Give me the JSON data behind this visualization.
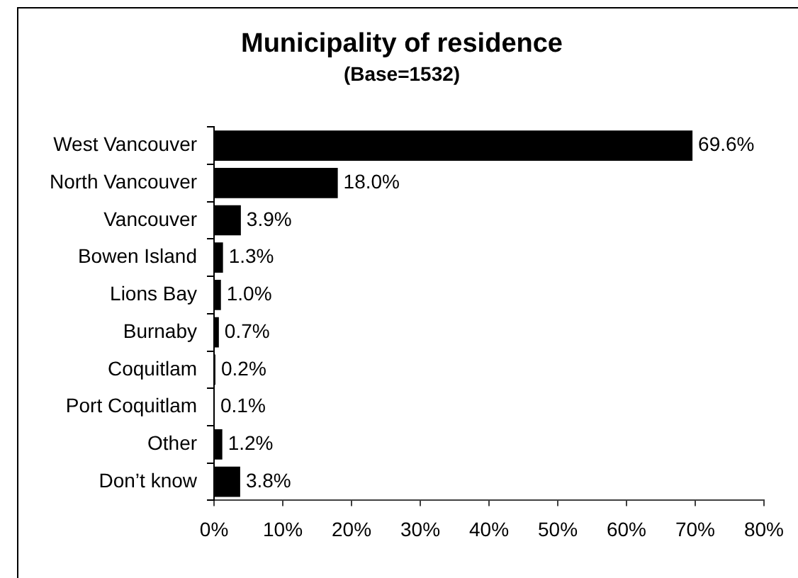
{
  "chart_data": {
    "type": "bar",
    "orientation": "horizontal",
    "title": "Municipality of residence",
    "subtitle": "(Base=1532)",
    "categories": [
      "West Vancouver",
      "North Vancouver",
      "Vancouver",
      "Bowen Island",
      "Lions Bay",
      "Burnaby",
      "Coquitlam",
      "Port Coquitlam",
      "Other",
      "Don’t know"
    ],
    "values": [
      69.6,
      18.0,
      3.9,
      1.3,
      1.0,
      0.7,
      0.2,
      0.1,
      1.2,
      3.8
    ],
    "color": "#000000",
    "value_labels": [
      "69.6%",
      "18.0%",
      "3.9%",
      "1.3%",
      "1.0%",
      "0.7%",
      "0.2%",
      "0.1%",
      "1.2%",
      "3.8%"
    ],
    "xlim": [
      0,
      80
    ],
    "xticks": [
      {
        "value": 0,
        "label": "0%"
      },
      {
        "value": 10,
        "label": "10%"
      },
      {
        "value": 20,
        "label": "20%"
      },
      {
        "value": 30,
        "label": "30%"
      },
      {
        "value": 40,
        "label": "40%"
      },
      {
        "value": 50,
        "label": "50%"
      },
      {
        "value": 60,
        "label": "60%"
      },
      {
        "value": 70,
        "label": "70%"
      },
      {
        "value": 80,
        "label": "80%"
      }
    ],
    "grid": false,
    "legend": false
  }
}
